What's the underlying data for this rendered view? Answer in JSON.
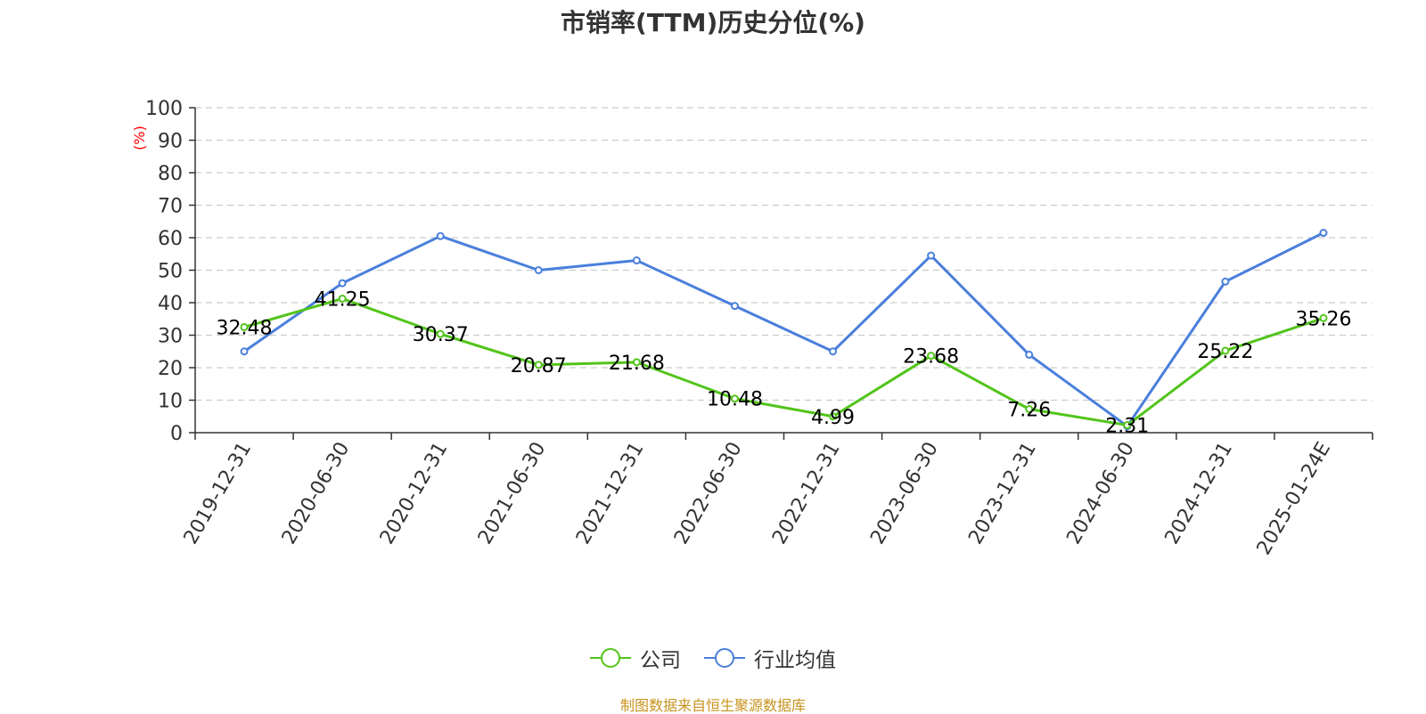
{
  "title": "市销率(TTM)历史分位(%)",
  "source": "制图数据来自恒生聚源数据库",
  "colors": {
    "company": "#52c41a",
    "industry": "#4a7fdc",
    "axis": "#333333",
    "grid": "#cccccc",
    "unit": "#ff0000",
    "source": "#c8931e"
  },
  "chart_data": {
    "type": "line",
    "title": "市销率(TTM)历史分位(%)",
    "ylabel": "(%)",
    "ylim": [
      0,
      100
    ],
    "yticks": [
      0,
      10,
      20,
      30,
      40,
      50,
      60,
      70,
      80,
      90,
      100
    ],
    "grid": true,
    "legend_position": "bottom-center",
    "categories": [
      "2019-12-31",
      "2020-06-30",
      "2020-12-31",
      "2021-06-30",
      "2021-12-31",
      "2022-06-30",
      "2022-12-31",
      "2023-06-30",
      "2023-12-31",
      "2024-06-30",
      "2024-12-31",
      "2025-01-24E"
    ],
    "series": [
      {
        "name": "公司",
        "color": "#52c41a",
        "values": [
          32.48,
          41.25,
          30.37,
          20.87,
          21.68,
          10.48,
          4.99,
          23.68,
          7.26,
          2.31,
          25.22,
          35.26
        ],
        "labels": [
          "32.48",
          "41.25",
          "30.37",
          "20.87",
          "21.68",
          "10.48",
          "4.99",
          "23.68",
          "7.26",
          "2.31",
          "25.22",
          "35.26"
        ]
      },
      {
        "name": "行业均值",
        "color": "#4a7fdc",
        "values": [
          25,
          46,
          60.5,
          50,
          53,
          39,
          25,
          54.5,
          24,
          2,
          46.5,
          61.5
        ]
      }
    ]
  }
}
